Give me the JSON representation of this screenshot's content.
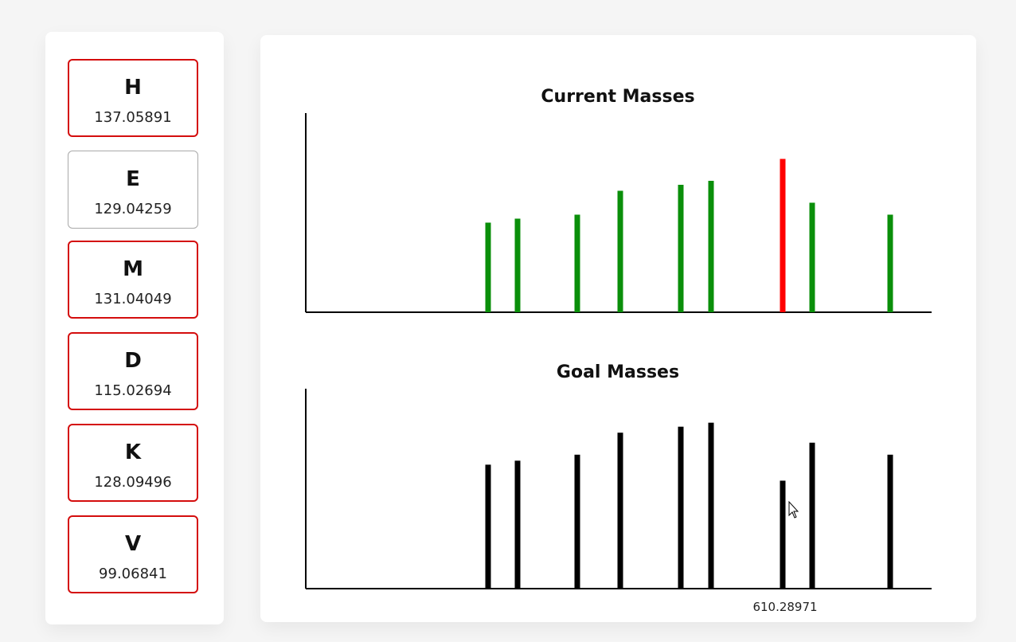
{
  "amino_acids": [
    {
      "letter": "H",
      "mass": "137.05891",
      "state": "selected"
    },
    {
      "letter": "E",
      "mass": "129.04259",
      "state": "neutral"
    },
    {
      "letter": "M",
      "mass": "131.04049",
      "state": "selected"
    },
    {
      "letter": "D",
      "mass": "115.02694",
      "state": "selected"
    },
    {
      "letter": "K",
      "mass": "128.09496",
      "state": "selected"
    },
    {
      "letter": "V",
      "mass": "99.06841",
      "state": "selected"
    }
  ],
  "colors": {
    "selected_border": "#d40d0d",
    "neutral_border": "#a9a9a9",
    "match_peak": "#0a8f0a",
    "mismatch_peak": "#ff0000",
    "goal_peak": "#000000"
  },
  "chart_data": [
    {
      "type": "bar",
      "title": "Current Masses",
      "x": [
        1,
        2,
        3,
        4,
        5,
        6,
        7,
        8,
        9
      ],
      "values": [
        0.45,
        0.47,
        0.49,
        0.61,
        0.64,
        0.66,
        0.77,
        0.55,
        0.49
      ],
      "status": [
        "match",
        "match",
        "match",
        "match",
        "match",
        "match",
        "mismatch",
        "match",
        "match"
      ],
      "xlim": [
        0,
        10
      ],
      "ylim": [
        0,
        1
      ]
    },
    {
      "type": "bar",
      "title": "Goal Masses",
      "x": [
        1,
        2,
        3,
        4,
        5,
        6,
        7,
        8,
        9
      ],
      "values": [
        0.62,
        0.64,
        0.67,
        0.78,
        0.81,
        0.83,
        0.54,
        0.73,
        0.67
      ],
      "xlim": [
        0,
        10
      ],
      "ylim": [
        0,
        1
      ],
      "hover_label": "610.28971"
    }
  ]
}
